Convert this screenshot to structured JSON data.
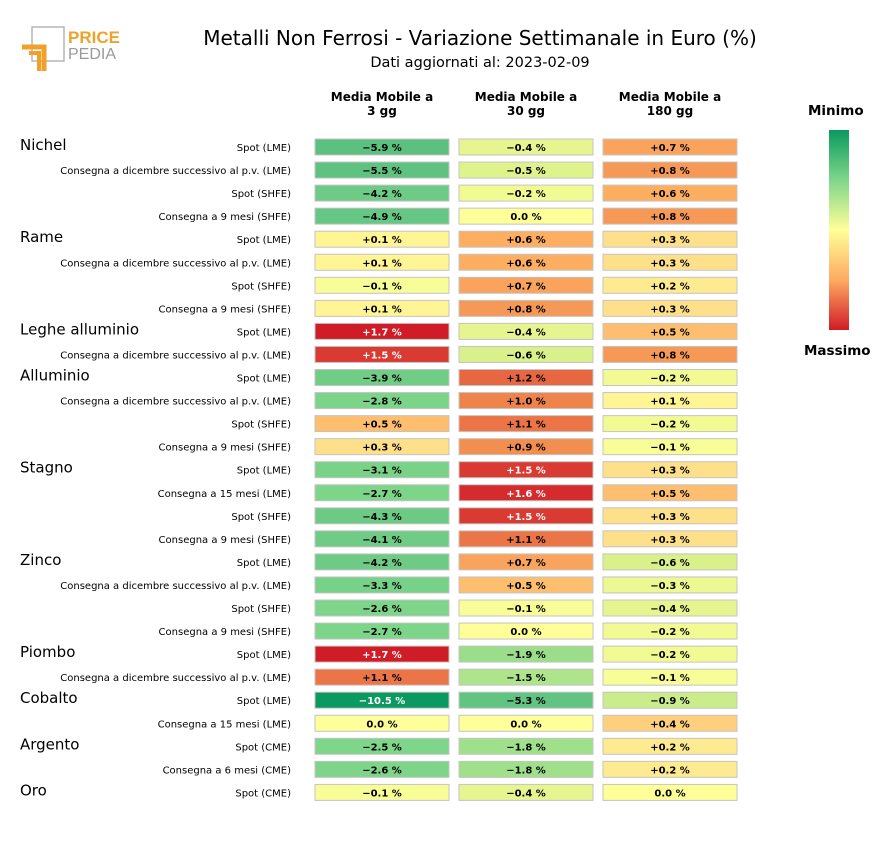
{
  "logo": {
    "word1": "PRICE",
    "word2": "PEDIA"
  },
  "header": {
    "title": "Metalli Non Ferrosi - Variazione Settimanale in Euro (%)",
    "subtitle": "Dati aggiornati al: 2023-02-09"
  },
  "legend": {
    "min_label": "Minimo",
    "max_label": "Massimo"
  },
  "colors": {
    "min": "#0a9960",
    "mid": "#ffff99",
    "max": "#d01c27"
  },
  "chart_data": {
    "type": "heatmap",
    "columns": [
      "Media Mobile a\n3 gg",
      "Media Mobile a\n30 gg",
      "Media Mobile a\n180 gg"
    ],
    "groups": [
      {
        "name": "Nichel",
        "rows": [
          {
            "label": "Spot (LME)",
            "values": [
              -5.9,
              -0.4,
              0.7
            ]
          },
          {
            "label": "Consegna a dicembre successivo al p.v. (LME)",
            "values": [
              -5.5,
              -0.5,
              0.8
            ]
          },
          {
            "label": "Spot (SHFE)",
            "values": [
              -4.2,
              -0.2,
              0.6
            ]
          },
          {
            "label": "Consegna a 9 mesi (SHFE)",
            "values": [
              -4.9,
              0.0,
              0.8
            ]
          }
        ]
      },
      {
        "name": "Rame",
        "rows": [
          {
            "label": "Spot (LME)",
            "values": [
              0.1,
              0.6,
              0.3
            ]
          },
          {
            "label": "Consegna a dicembre successivo al p.v. (LME)",
            "values": [
              0.1,
              0.6,
              0.3
            ]
          },
          {
            "label": "Spot (SHFE)",
            "values": [
              -0.1,
              0.7,
              0.2
            ]
          },
          {
            "label": "Consegna a 9 mesi (SHFE)",
            "values": [
              0.1,
              0.8,
              0.3
            ]
          }
        ]
      },
      {
        "name": "Leghe alluminio",
        "rows": [
          {
            "label": "Spot (LME)",
            "values": [
              1.7,
              -0.4,
              0.5
            ]
          },
          {
            "label": "Consegna a dicembre successivo al p.v. (LME)",
            "values": [
              1.5,
              -0.6,
              0.8
            ]
          }
        ]
      },
      {
        "name": "Alluminio",
        "rows": [
          {
            "label": "Spot (LME)",
            "values": [
              -3.9,
              1.2,
              -0.2
            ]
          },
          {
            "label": "Consegna a dicembre successivo al p.v. (LME)",
            "values": [
              -2.8,
              1.0,
              0.1
            ]
          },
          {
            "label": "Spot (SHFE)",
            "values": [
              0.5,
              1.1,
              -0.2
            ]
          },
          {
            "label": "Consegna a 9 mesi (SHFE)",
            "values": [
              0.3,
              0.9,
              -0.1
            ]
          }
        ]
      },
      {
        "name": "Stagno",
        "rows": [
          {
            "label": "Spot (LME)",
            "values": [
              -3.1,
              1.5,
              0.3
            ]
          },
          {
            "label": "Consegna a 15 mesi (LME)",
            "values": [
              -2.7,
              1.6,
              0.5
            ]
          },
          {
            "label": "Spot (SHFE)",
            "values": [
              -4.3,
              1.5,
              0.3
            ]
          },
          {
            "label": "Consegna a 9 mesi (SHFE)",
            "values": [
              -4.1,
              1.1,
              0.3
            ]
          }
        ]
      },
      {
        "name": "Zinco",
        "rows": [
          {
            "label": "Spot (LME)",
            "values": [
              -4.2,
              0.7,
              -0.6
            ]
          },
          {
            "label": "Consegna a dicembre successivo al p.v. (LME)",
            "values": [
              -3.3,
              0.5,
              -0.3
            ]
          },
          {
            "label": "Spot (SHFE)",
            "values": [
              -2.6,
              -0.1,
              -0.4
            ]
          },
          {
            "label": "Consegna a 9 mesi (SHFE)",
            "values": [
              -2.7,
              0.0,
              -0.2
            ]
          }
        ]
      },
      {
        "name": "Piombo",
        "rows": [
          {
            "label": "Spot (LME)",
            "values": [
              1.7,
              -1.9,
              -0.2
            ]
          },
          {
            "label": "Consegna a dicembre successivo al p.v. (LME)",
            "values": [
              1.1,
              -1.5,
              -0.1
            ]
          }
        ]
      },
      {
        "name": "Cobalto",
        "rows": [
          {
            "label": "Spot (LME)",
            "values": [
              -10.5,
              -5.3,
              -0.9
            ]
          },
          {
            "label": "Consegna a 15 mesi (LME)",
            "values": [
              0.0,
              0.0,
              0.4
            ]
          }
        ]
      },
      {
        "name": "Argento",
        "rows": [
          {
            "label": "Spot (CME)",
            "values": [
              -2.5,
              -1.8,
              0.2
            ]
          },
          {
            "label": "Consegna a 6 mesi (CME)",
            "values": [
              -2.6,
              -1.8,
              0.2
            ]
          }
        ]
      },
      {
        "name": "Oro",
        "rows": [
          {
            "label": "Spot (CME)",
            "values": [
              -0.1,
              -0.4,
              0.0
            ]
          }
        ]
      }
    ]
  }
}
